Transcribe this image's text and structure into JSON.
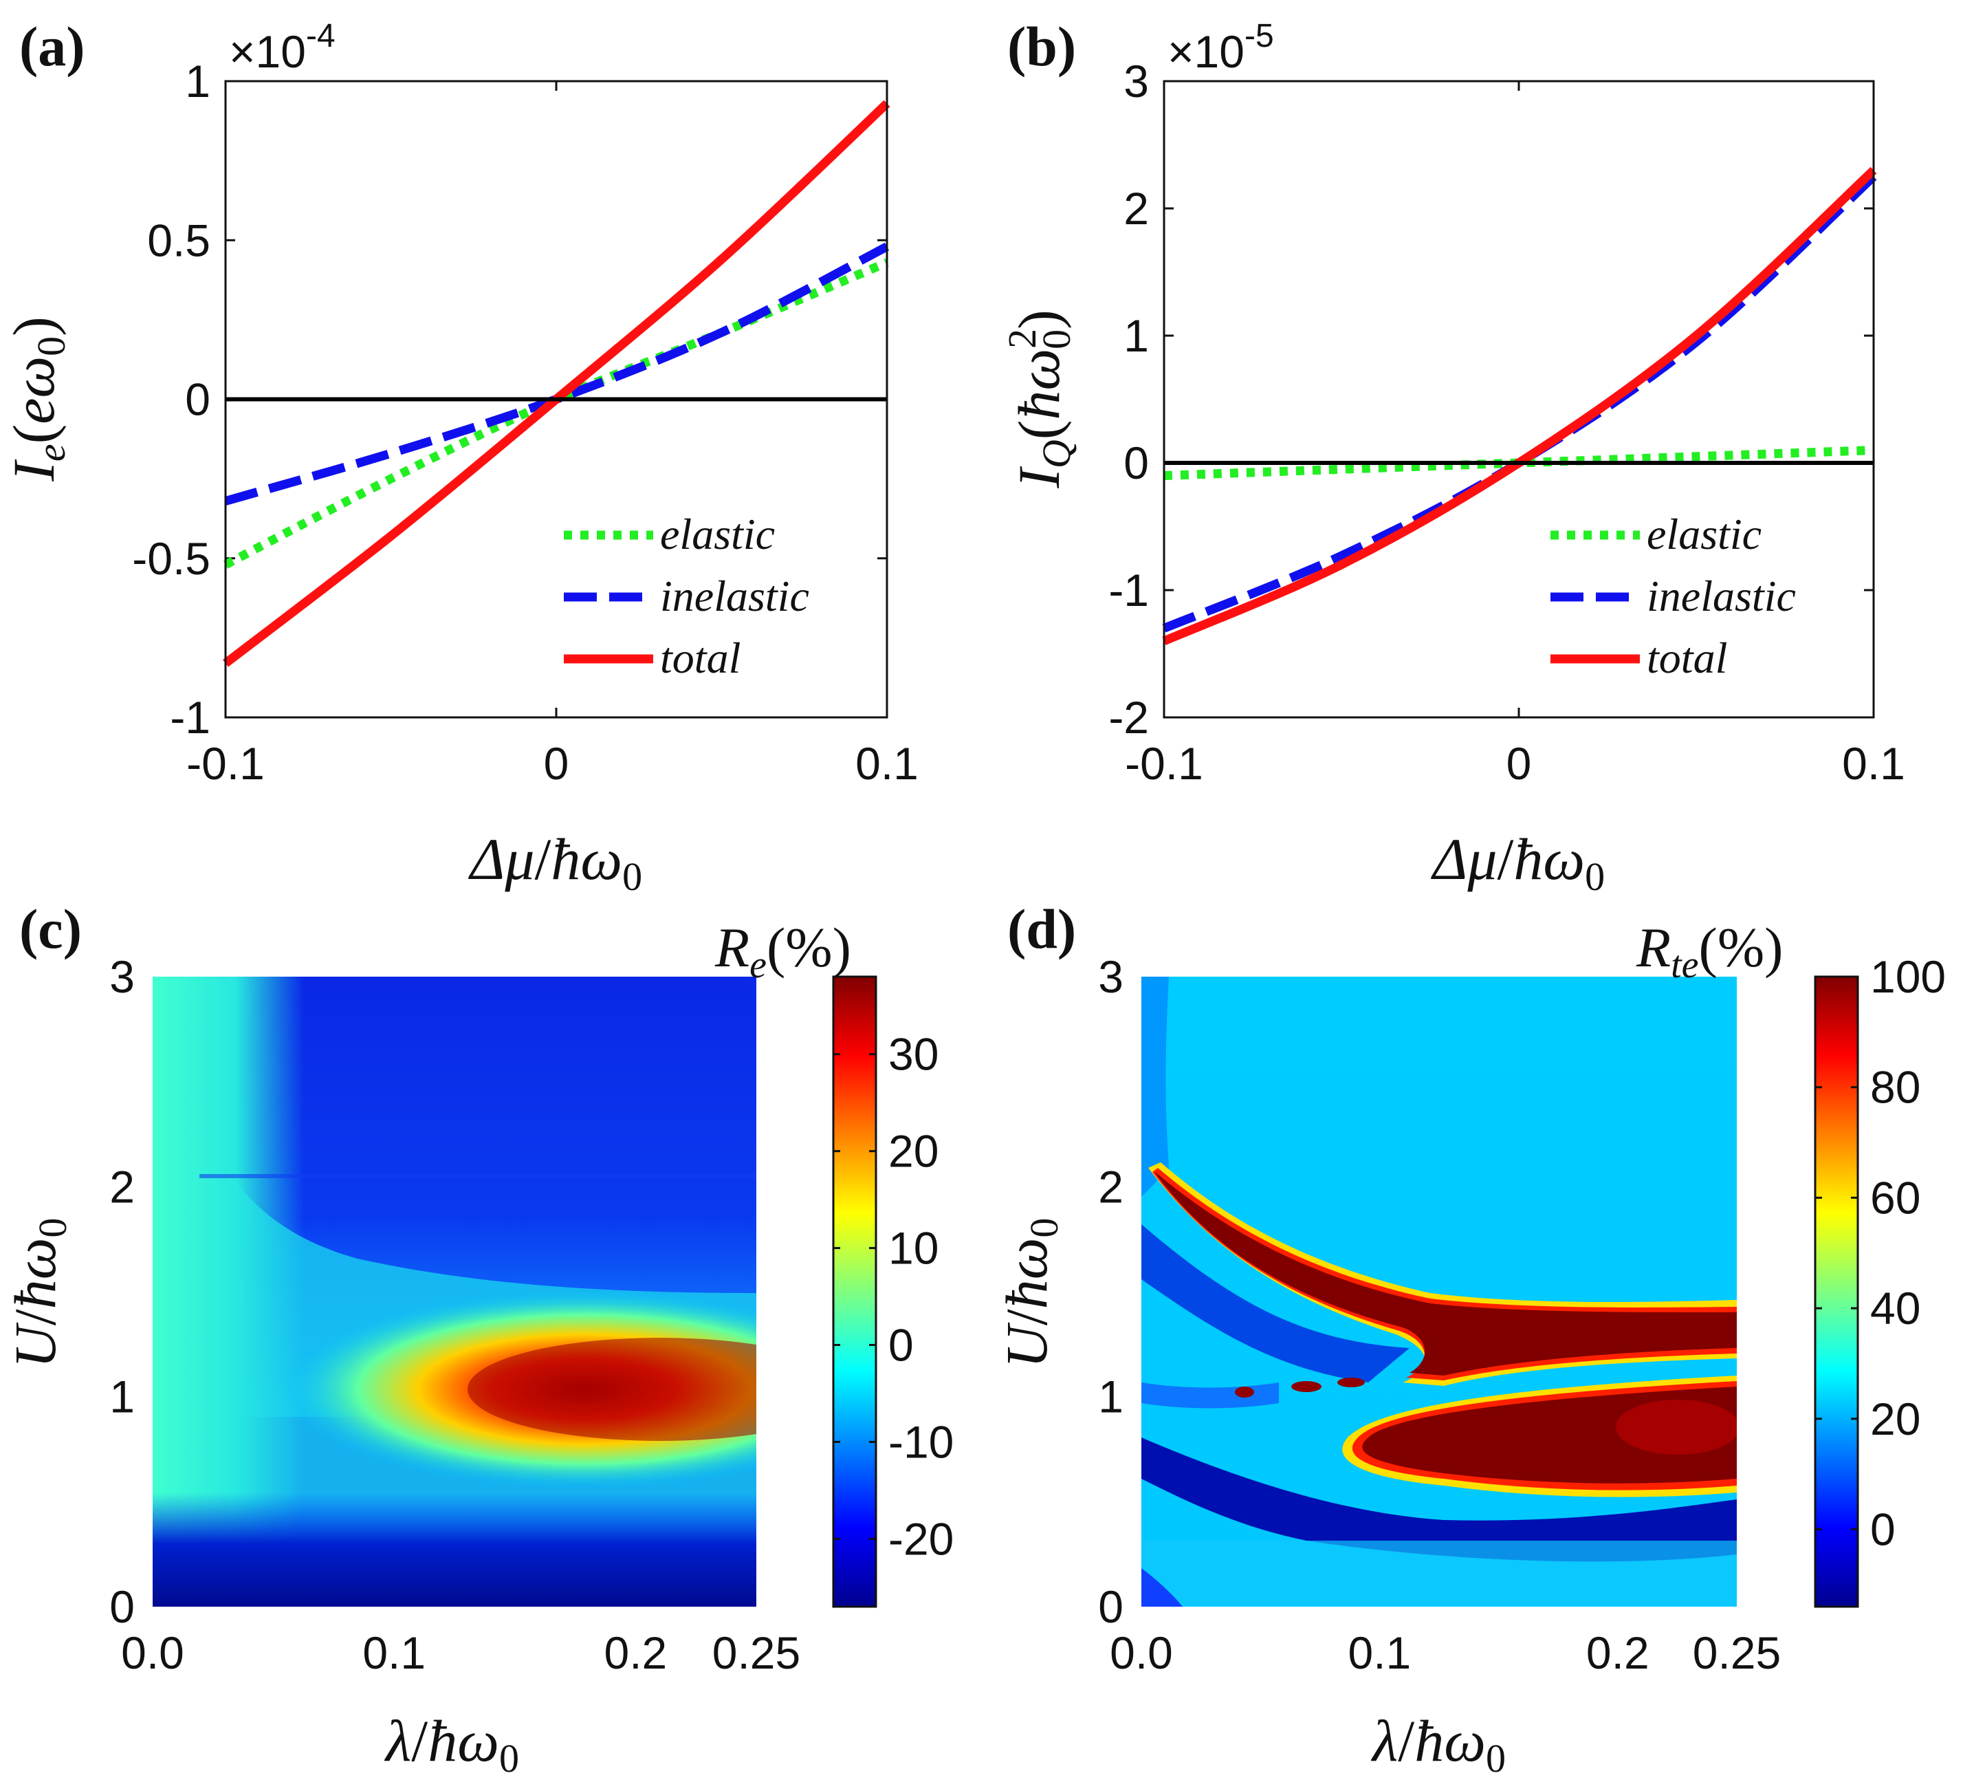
{
  "panel_labels": [
    "(a)",
    "(b)",
    "(c)",
    "(d)"
  ],
  "chart_data": [
    {
      "id": "a",
      "type": "line",
      "exponent_label": "×10",
      "exponent_power": "-4",
      "xlabel": "Δμ/ħω₀",
      "ylabel": "Iₑ(eω₀)",
      "xlim": [
        -0.1,
        0.1
      ],
      "ylim": [
        -1,
        1
      ],
      "xticks": [
        -0.1,
        0,
        0.1
      ],
      "xtick_labels": [
        "-0.1",
        "0",
        "0.1"
      ],
      "yticks": [
        -1,
        -0.5,
        0,
        0.5,
        1
      ],
      "ytick_labels": [
        "-1",
        "-0.5",
        "0",
        "0.5",
        "1"
      ],
      "legend_position": "bottom-right",
      "series": [
        {
          "name": "elastic",
          "color": "#22ee22",
          "style": "dotted",
          "x": [
            -0.1,
            -0.05,
            0,
            0.05,
            0.1
          ],
          "values": [
            -0.52,
            -0.25,
            0,
            0.21,
            0.43
          ]
        },
        {
          "name": "inelastic",
          "color": "#1010ee",
          "style": "dashed",
          "x": [
            -0.1,
            -0.05,
            0,
            0.05,
            0.1
          ],
          "values": [
            -0.32,
            -0.17,
            0,
            0.21,
            0.48
          ]
        },
        {
          "name": "total",
          "color": "#ff1010",
          "style": "solid",
          "x": [
            -0.1,
            -0.05,
            0,
            0.05,
            0.1
          ],
          "values": [
            -0.83,
            -0.43,
            0,
            0.44,
            0.93
          ]
        },
        {
          "name": "",
          "color": "#000000",
          "style": "solid",
          "x": [
            -0.1,
            0.1
          ],
          "values": [
            0,
            0
          ]
        }
      ]
    },
    {
      "id": "b",
      "type": "line",
      "exponent_label": "×10",
      "exponent_power": "-5",
      "xlabel": "Δμ/ħω₀",
      "ylabel": "I_Q(ħω₀²)",
      "xlim": [
        -0.1,
        0.1
      ],
      "ylim": [
        -2,
        3
      ],
      "xticks": [
        -0.1,
        0,
        0.1
      ],
      "xtick_labels": [
        "-0.1",
        "0",
        "0.1"
      ],
      "yticks": [
        -2,
        -1,
        0,
        1,
        2,
        3
      ],
      "ytick_labels": [
        "-2",
        "-1",
        "0",
        "1",
        "2",
        "3"
      ],
      "legend_position": "bottom-right",
      "series": [
        {
          "name": "elastic",
          "color": "#22ee22",
          "style": "dotted",
          "x": [
            -0.1,
            -0.05,
            0,
            0.05,
            0.1
          ],
          "values": [
            -0.1,
            -0.05,
            0,
            0.05,
            0.1
          ]
        },
        {
          "name": "inelastic",
          "color": "#1010ee",
          "style": "dashed",
          "x": [
            -0.1,
            -0.05,
            0,
            0.05,
            0.1
          ],
          "values": [
            -1.3,
            -0.73,
            0,
            0.95,
            2.25
          ]
        },
        {
          "name": "total",
          "color": "#ff1010",
          "style": "solid",
          "x": [
            -0.1,
            -0.05,
            0,
            0.05,
            0.1
          ],
          "values": [
            -1.4,
            -0.8,
            0,
            1.0,
            2.3
          ]
        },
        {
          "name": "",
          "color": "#000000",
          "style": "solid",
          "x": [
            -0.1,
            0.1
          ],
          "values": [
            0,
            0
          ]
        }
      ]
    },
    {
      "id": "c",
      "type": "heatmap",
      "colorbar_title": "Rₑ(%)",
      "xlabel": "λ/ħω₀",
      "ylabel": "U/ħω₀",
      "xlim": [
        0,
        0.25
      ],
      "ylim": [
        0,
        3
      ],
      "xticks": [
        0,
        0.1,
        0.2,
        0.25
      ],
      "xtick_labels": [
        "0.0",
        "0.1",
        "0.2",
        "0.25"
      ],
      "yticks": [
        0,
        1,
        2,
        3
      ],
      "ytick_labels": [
        "0",
        "1",
        "2",
        "3"
      ],
      "colorbar_range": [
        -27,
        38
      ],
      "colorbar_ticks": [
        -20,
        -10,
        0,
        10,
        20,
        30
      ],
      "colorbar_tick_labels": [
        "-20",
        "-10",
        "0",
        "10",
        "20",
        "30"
      ]
    },
    {
      "id": "d",
      "type": "heatmap",
      "colorbar_title": "R_te(%)",
      "xlabel": "λ/ħω₀",
      "ylabel": "U/ħω₀",
      "xlim": [
        0,
        0.25
      ],
      "ylim": [
        0,
        3
      ],
      "xticks": [
        0,
        0.1,
        0.2,
        0.25
      ],
      "xtick_labels": [
        "0.0",
        "0.1",
        "0.2",
        "0.25"
      ],
      "yticks": [
        0,
        1,
        2,
        3
      ],
      "ytick_labels": [
        "0",
        "1",
        "2",
        "3"
      ],
      "colorbar_range": [
        -14,
        100
      ],
      "colorbar_ticks": [
        0,
        20,
        40,
        60,
        80,
        100
      ],
      "colorbar_tick_labels": [
        "0",
        "20",
        "40",
        "60",
        "80",
        "100"
      ]
    }
  ]
}
